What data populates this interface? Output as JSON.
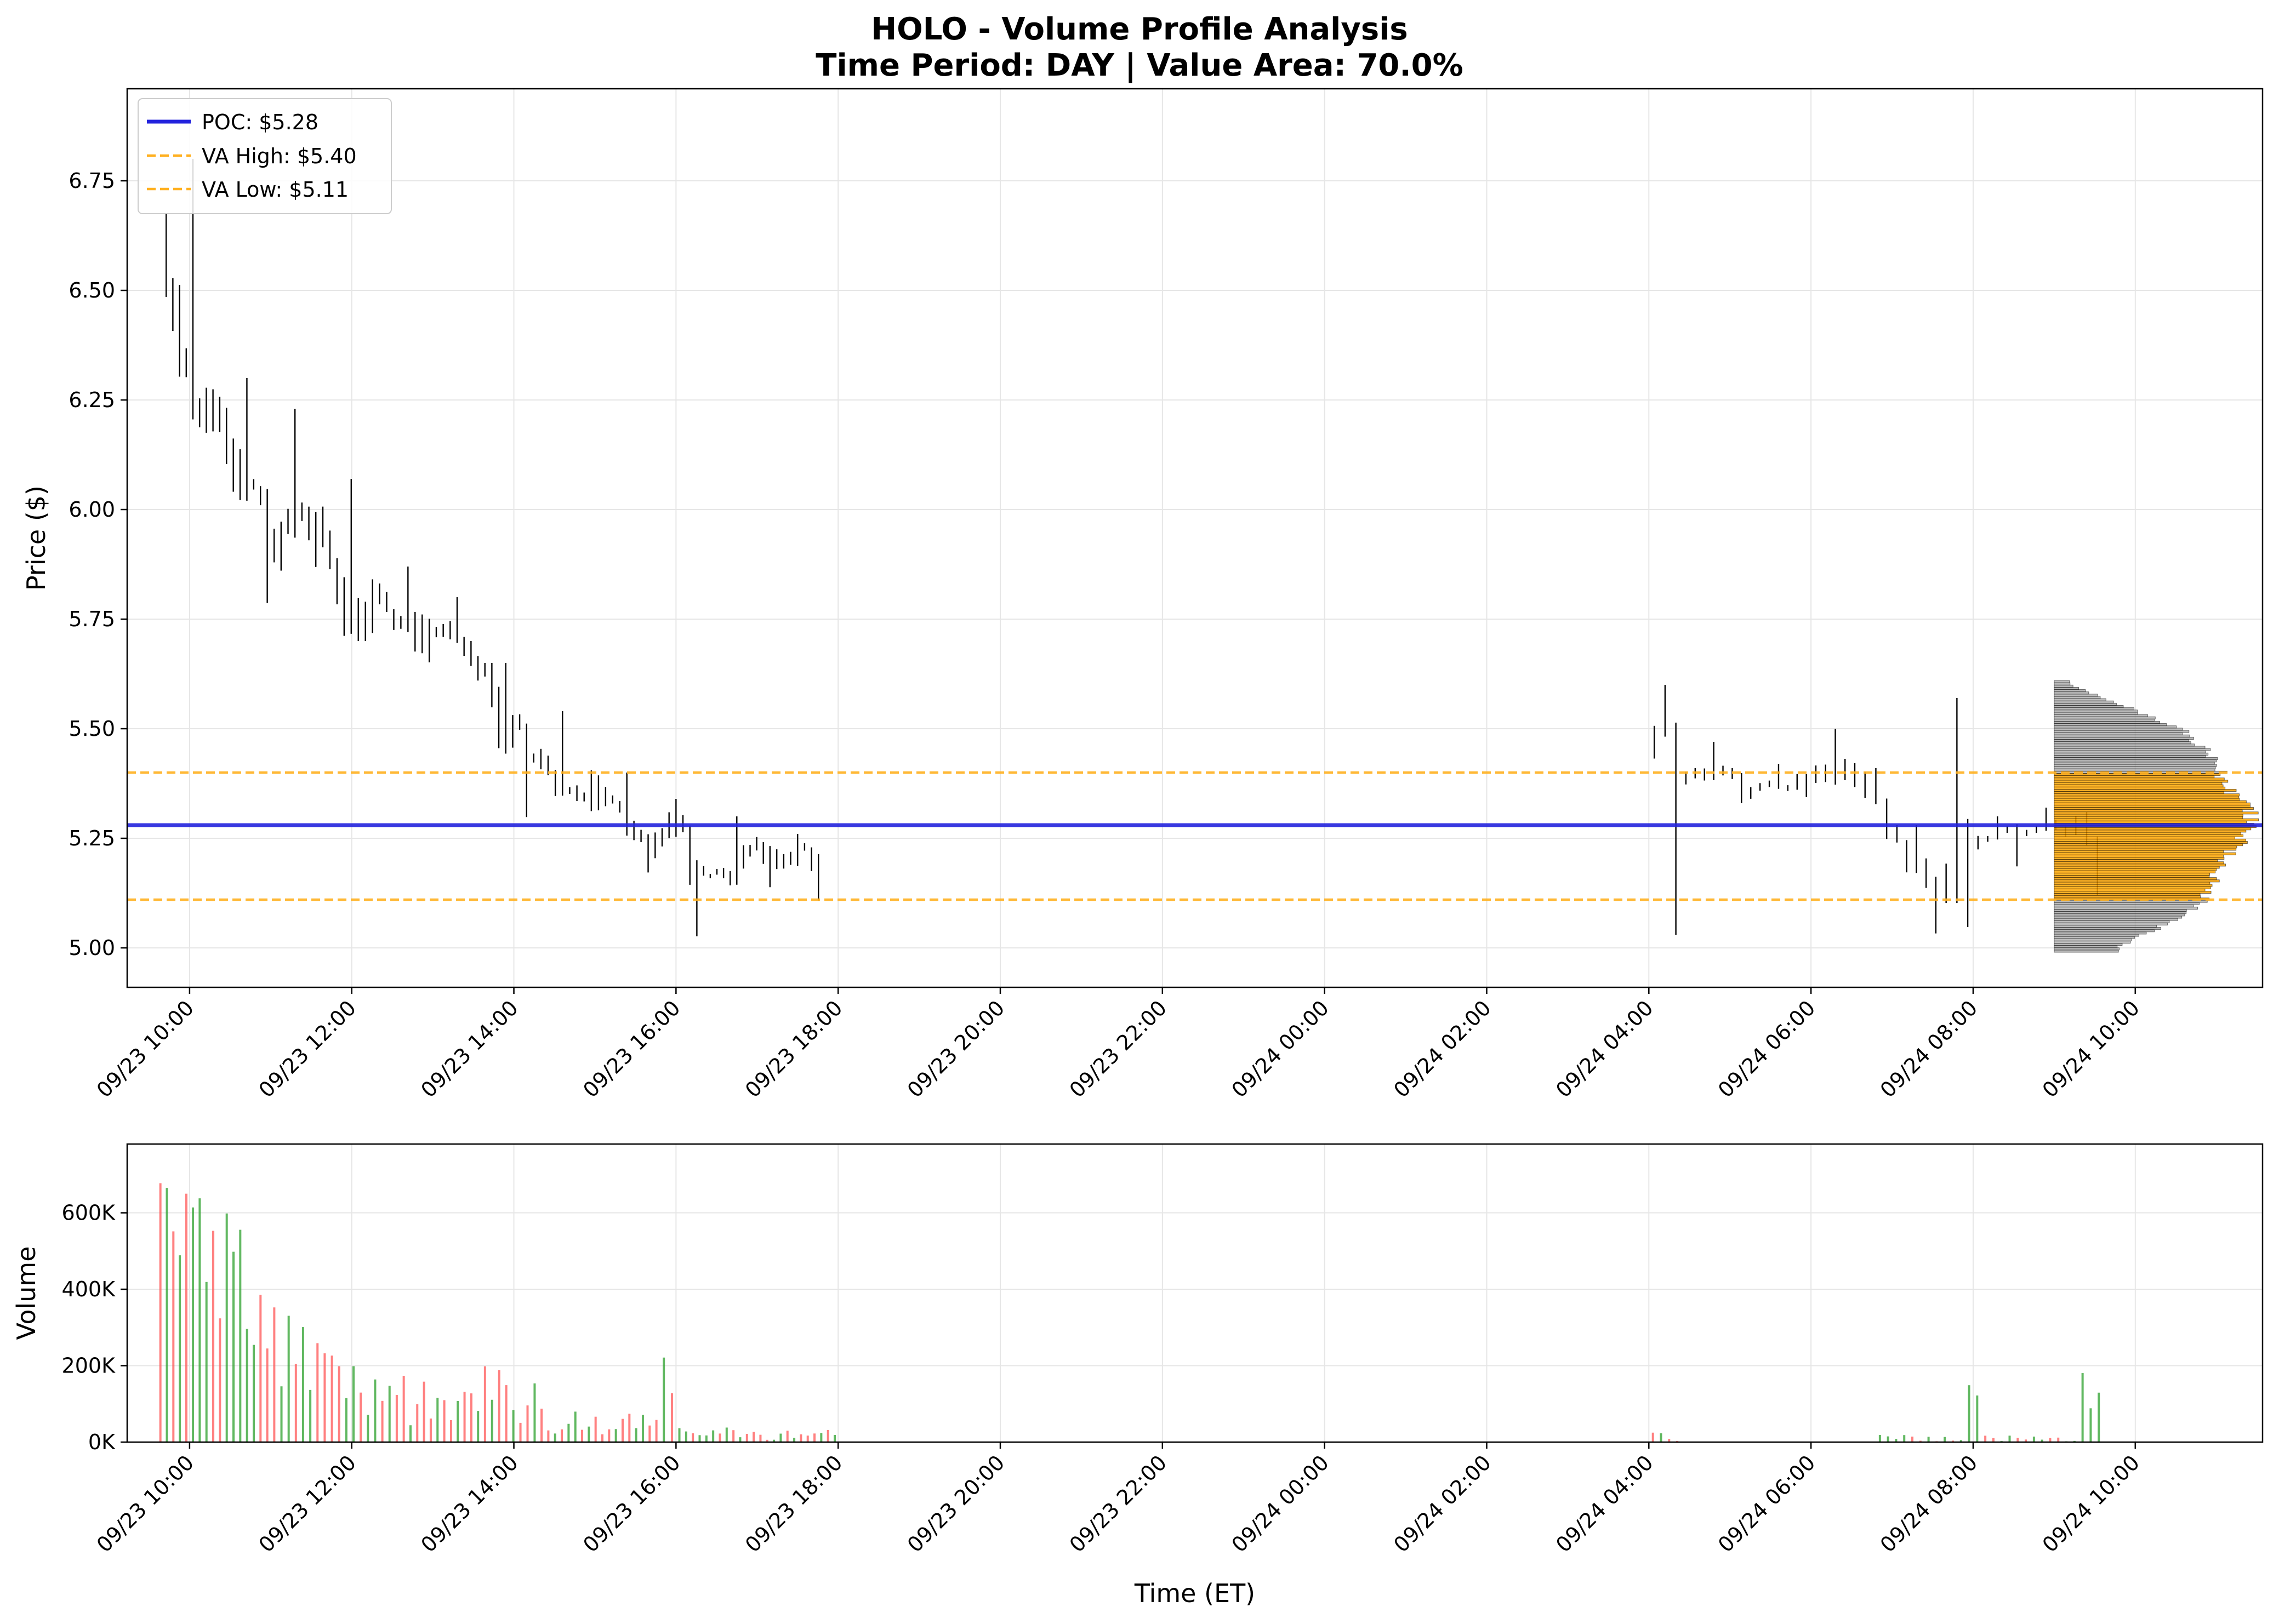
{
  "chart_data": {
    "type": "candlestick_volume_profile",
    "title_line1": "HOLO - Volume Profile Analysis",
    "title_line2": "Time Period: DAY | Value Area: 70.0%",
    "price_ylabel": "Price ($)",
    "volume_ylabel": "Volume",
    "xlabel": "Time (ET)",
    "price_ylim": [
      4.91,
      6.96
    ],
    "volume_ylim": [
      0,
      780000
    ],
    "x_range_hours": [
      -0.77,
      25.57
    ],
    "price_yticks": [
      "5.00",
      "5.25",
      "5.50",
      "5.75",
      "6.00",
      "6.25",
      "6.50",
      "6.75"
    ],
    "volume_yticks": [
      "0K",
      "200K",
      "400K",
      "600K"
    ],
    "x_ticks": [
      "09/23 10:00",
      "09/23 12:00",
      "09/23 14:00",
      "09/23 16:00",
      "09/23 18:00",
      "09/23 20:00",
      "09/23 22:00",
      "09/24 00:00",
      "09/24 02:00",
      "09/24 04:00",
      "09/24 06:00",
      "09/24 08:00",
      "09/24 10:00"
    ],
    "poc": 5.28,
    "va_high": 5.4,
    "va_low": 5.11,
    "legend": {
      "placement": "upper-left",
      "poc_label": "POC: $5.28",
      "va_high_label": "VA High: $5.40",
      "va_low_label": "VA Low: $5.11"
    },
    "colors": {
      "poc": "#2222dd",
      "value_area": "#ffb020",
      "profile_value_area": "#ffa500",
      "profile_outside": "#a0a0a0",
      "candle": "#000000",
      "volume_up": "#2ca02c",
      "volume_down": "#ff5555",
      "grid": "#e6e6e6"
    },
    "price_session": [
      {
        "t0": -0.33,
        "t1": 0.33,
        "hi": 6.8,
        "lo": 6.16,
        "end": 6.3
      },
      {
        "t0": 0.33,
        "t1": 1.0,
        "hi": 6.3,
        "lo": 5.76,
        "end": 5.95
      },
      {
        "t0": 1.0,
        "t1": 1.6,
        "hi": 6.23,
        "lo": 5.85,
        "end": 5.98
      },
      {
        "t0": 1.6,
        "t1": 2.3,
        "hi": 6.07,
        "lo": 5.7,
        "end": 5.8
      },
      {
        "t0": 2.3,
        "t1": 3.0,
        "hi": 5.87,
        "lo": 5.64,
        "end": 5.72
      },
      {
        "t0": 3.0,
        "t1": 3.6,
        "hi": 5.8,
        "lo": 5.6,
        "end": 5.65
      },
      {
        "t0": 3.6,
        "t1": 4.2,
        "hi": 5.65,
        "lo": 5.28,
        "end": 5.4
      },
      {
        "t0": 4.2,
        "t1": 5.0,
        "hi": 5.54,
        "lo": 5.3,
        "end": 5.4
      },
      {
        "t0": 5.0,
        "t1": 5.7,
        "hi": 5.4,
        "lo": 5.16,
        "end": 5.26
      },
      {
        "t0": 5.7,
        "t1": 6.3,
        "hi": 5.34,
        "lo": 5.01,
        "end": 5.15
      },
      {
        "t0": 6.3,
        "t1": 7.2,
        "hi": 5.3,
        "lo": 5.13,
        "end": 5.2
      },
      {
        "t0": 7.2,
        "t1": 7.8,
        "hi": 5.26,
        "lo": 5.1,
        "end": 5.18
      }
    ],
    "price_premarket": [
      {
        "t0": 18.0,
        "t1": 18.4,
        "hi": 5.6,
        "lo": 5.0,
        "end": 5.44
      },
      {
        "t0": 18.4,
        "t1": 19.2,
        "hi": 5.47,
        "lo": 5.33,
        "end": 5.36
      },
      {
        "t0": 19.2,
        "t1": 20.0,
        "hi": 5.42,
        "lo": 5.34,
        "end": 5.39
      },
      {
        "t0": 20.0,
        "t1": 20.6,
        "hi": 5.5,
        "lo": 5.36,
        "end": 5.4
      },
      {
        "t0": 20.6,
        "t1": 21.0,
        "hi": 5.41,
        "lo": 5.24,
        "end": 5.3
      },
      {
        "t0": 21.0,
        "t1": 21.6,
        "hi": 5.28,
        "lo": 5.02,
        "end": 5.12
      },
      {
        "t0": 21.6,
        "t1": 22.0,
        "hi": 5.57,
        "lo": 5.02,
        "end": 5.15
      },
      {
        "t0": 22.0,
        "t1": 22.6,
        "hi": 5.3,
        "lo": 5.18,
        "end": 5.26
      },
      {
        "t0": 22.6,
        "t1": 23.2,
        "hi": 5.32,
        "lo": 5.25,
        "end": 5.28
      },
      {
        "t0": 23.2,
        "t1": 23.6,
        "hi": 5.31,
        "lo": 5.11,
        "end": 5.22
      }
    ],
    "volume_profile": {
      "price_min": 4.99,
      "price_max": 5.61,
      "bins": [
        {
          "price": 5.0,
          "width": 0.6
        },
        {
          "price": 5.05,
          "width": 1.02
        },
        {
          "price": 5.1,
          "width": 1.4
        },
        {
          "price": 5.15,
          "width": 1.5
        },
        {
          "price": 5.2,
          "width": 1.62
        },
        {
          "price": 5.25,
          "width": 1.8
        },
        {
          "price": 5.3,
          "width": 1.9
        },
        {
          "price": 5.35,
          "width": 1.7
        },
        {
          "price": 5.4,
          "width": 1.58
        },
        {
          "price": 5.45,
          "width": 1.45
        },
        {
          "price": 5.5,
          "width": 1.2
        },
        {
          "price": 5.55,
          "width": 0.68
        },
        {
          "price": 5.6,
          "width": 0.15
        }
      ]
    },
    "volume_session": [
      {
        "t0": -0.4,
        "t1": 0.0,
        "peak": 740000,
        "floor": 450000
      },
      {
        "t0": 0.0,
        "t1": 0.5,
        "peak": 690000,
        "floor": 240000
      },
      {
        "t0": 0.5,
        "t1": 1.0,
        "peak": 580000,
        "floor": 200000
      },
      {
        "t0": 1.0,
        "t1": 1.8,
        "peak": 370000,
        "floor": 80000
      },
      {
        "t0": 1.8,
        "t1": 2.6,
        "peak": 200000,
        "floor": 60000
      },
      {
        "t0": 2.6,
        "t1": 3.6,
        "peak": 175000,
        "floor": 40000
      },
      {
        "t0": 3.6,
        "t1": 4.3,
        "peak": 200000,
        "floor": 50000
      },
      {
        "t0": 4.3,
        "t1": 5.8,
        "peak": 90000,
        "floor": 20000
      },
      {
        "t0": 5.8,
        "t1": 6.0,
        "peak": 235000,
        "floor": 70000
      },
      {
        "t0": 6.0,
        "t1": 8.0,
        "peak": 40000,
        "floor": 2000
      }
    ],
    "volume_premarket": [
      {
        "t0": 18.0,
        "t1": 18.4,
        "peak": 25000,
        "floor": 3000
      },
      {
        "t0": 20.8,
        "t1": 21.9,
        "peak": 20000,
        "floor": 2000
      },
      {
        "t0": 21.9,
        "t1": 22.1,
        "peak": 175000,
        "floor": 10000
      },
      {
        "t0": 22.1,
        "t1": 23.3,
        "peak": 18000,
        "floor": 2000
      },
      {
        "t0": 23.3,
        "t1": 23.6,
        "peak": 200000,
        "floor": 15000
      }
    ]
  }
}
